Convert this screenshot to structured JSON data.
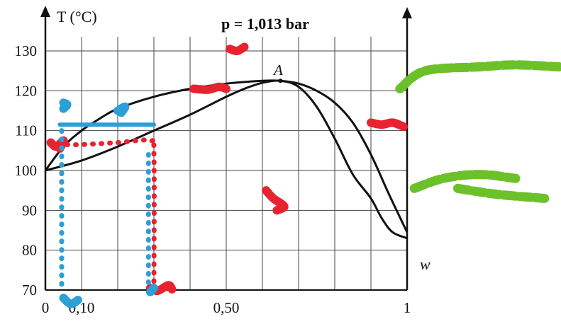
{
  "chart_data": {
    "type": "line",
    "title": "p = 1,013 bar",
    "ylabel": "T (°C)",
    "xlabel": "w",
    "x_ticks": [
      "0",
      "0,10",
      "0,50",
      "1"
    ],
    "x_tick_values": [
      0,
      0.1,
      0.5,
      1
    ],
    "y_ticks": [
      70,
      80,
      90,
      100,
      110,
      120,
      130
    ],
    "xlim": [
      0,
      1
    ],
    "ylim": [
      70,
      137
    ],
    "grid": true,
    "annotation": {
      "label": "A",
      "x": 0.65,
      "y": 122.5
    },
    "series": [
      {
        "x": [
          0,
          0.05,
          0.1,
          0.15,
          0.2,
          0.3,
          0.4,
          0.5,
          0.6,
          0.65,
          0.7,
          0.75,
          0.8,
          0.85,
          0.9,
          0.95,
          1.0
        ],
        "y": [
          100,
          106,
          110,
          113,
          115.5,
          118.5,
          120.5,
          121.8,
          122.5,
          122.5,
          121.8,
          120,
          117,
          112,
          104,
          94,
          84.5
        ]
      },
      {
        "x": [
          0,
          0.1,
          0.2,
          0.3,
          0.4,
          0.5,
          0.55,
          0.6,
          0.65,
          0.7,
          0.75,
          0.8,
          0.85,
          0.9,
          0.93,
          0.96,
          1.0
        ],
        "y": [
          100,
          102.5,
          106,
          110,
          114,
          118.5,
          120.5,
          122,
          122.5,
          121,
          116,
          108,
          99,
          93,
          88,
          84.5,
          83
        ]
      }
    ],
    "handwritten_annotations": [
      {
        "color": "#e8222e",
        "shape": "dotted-path",
        "points": [
          [
            0.06,
            106.5
          ],
          [
            0.1,
            106.5
          ],
          [
            0.2,
            107
          ],
          [
            0.29,
            107.5
          ],
          [
            0.3,
            104
          ],
          [
            0.3,
            71
          ]
        ]
      },
      {
        "color": "#e8222e",
        "shape": "scribble",
        "points": [
          [
            0.015,
            107
          ],
          [
            0.03,
            106
          ],
          [
            0.05,
            107.5
          ],
          [
            0.04,
            105.5
          ]
        ]
      },
      {
        "color": "#e8222e",
        "shape": "scribble",
        "points": [
          [
            0.41,
            120.5
          ],
          [
            0.45,
            120.3
          ],
          [
            0.48,
            121
          ],
          [
            0.5,
            120.5
          ]
        ]
      },
      {
        "color": "#e8222e",
        "shape": "scribble",
        "points": [
          [
            0.51,
            130.5
          ],
          [
            0.53,
            130
          ],
          [
            0.55,
            131
          ]
        ]
      },
      {
        "color": "#e8222e",
        "shape": "scribble",
        "points": [
          [
            0.61,
            95
          ],
          [
            0.63,
            93
          ],
          [
            0.66,
            91
          ],
          [
            0.64,
            90
          ]
        ]
      },
      {
        "color": "#e8222e",
        "shape": "scribble",
        "points": [
          [
            0.9,
            112
          ],
          [
            0.93,
            111.5
          ],
          [
            0.96,
            112
          ],
          [
            0.99,
            111
          ]
        ]
      },
      {
        "color": "#e8222e",
        "shape": "scribble",
        "points": [
          [
            0.29,
            70.5
          ],
          [
            0.31,
            69.8
          ],
          [
            0.34,
            71.2
          ],
          [
            0.35,
            70.2
          ]
        ]
      },
      {
        "color": "#2b9fd6",
        "shape": "dotted-path",
        "points": [
          [
            0.045,
            110
          ],
          [
            0.045,
            71
          ]
        ]
      },
      {
        "color": "#2b9fd6",
        "shape": "solid-path",
        "points": [
          [
            0.04,
            111.5
          ],
          [
            0.3,
            111.5
          ]
        ]
      },
      {
        "color": "#2b9fd6",
        "shape": "dotted-path",
        "points": [
          [
            0.285,
            104
          ],
          [
            0.285,
            71
          ]
        ]
      },
      {
        "color": "#2b9fd6",
        "shape": "scribble",
        "points": [
          [
            0.05,
            115.5
          ],
          [
            0.06,
            116.5
          ],
          [
            0.05,
            117
          ]
        ]
      },
      {
        "color": "#2b9fd6",
        "shape": "scribble",
        "points": [
          [
            0.2,
            115
          ],
          [
            0.22,
            116
          ],
          [
            0.21,
            114.5
          ]
        ]
      },
      {
        "color": "#2b9fd6",
        "shape": "scribble",
        "points": [
          [
            0.29,
            69.5
          ],
          [
            0.3,
            70.5
          ]
        ]
      },
      {
        "color": "#2b9fd6",
        "shape": "scribble",
        "points": [
          [
            0.05,
            68
          ],
          [
            0.07,
            66.5
          ],
          [
            0.09,
            67.5
          ]
        ]
      },
      {
        "color": "#6cc12a",
        "shape": "stroke",
        "points": [
          [
            0.98,
            120.5
          ],
          [
            1.05,
            125
          ],
          [
            1.2,
            126
          ],
          [
            1.3,
            126.5
          ],
          [
            1.42,
            126
          ]
        ]
      },
      {
        "color": "#6cc12a",
        "shape": "stroke",
        "points": [
          [
            1.02,
            95.5
          ],
          [
            1.1,
            98
          ],
          [
            1.2,
            99
          ],
          [
            1.3,
            98
          ]
        ]
      },
      {
        "color": "#6cc12a",
        "shape": "stroke",
        "points": [
          [
            1.14,
            95.5
          ],
          [
            1.25,
            94
          ],
          [
            1.38,
            93
          ]
        ]
      }
    ]
  }
}
